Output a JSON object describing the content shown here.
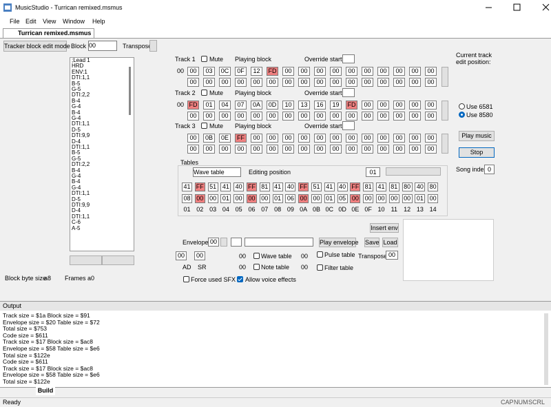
{
  "window_title": "MusicStudio - Turrican remixed.msmus",
  "menu": [
    "File",
    "Edit",
    "View",
    "Window",
    "Help"
  ],
  "tab": "Turrican remixed.msmus",
  "toolbar": {
    "mode_button": "Tracker block edit mode",
    "block_label": "Block",
    "block_value": "00",
    "transpose_label": "Transpose"
  },
  "block_list": [
    ";Lead 1",
    "HRD",
    "ENV:1",
    "DTI:1,1",
    "B-5",
    "G-5",
    "DTI:2,2",
    "B-4",
    "G-4",
    "B-4",
    "G-4",
    "DTI:1,1",
    "D-5",
    "DTI:9,9",
    "D-4",
    "DTI:1,1",
    "B-5",
    "G-5",
    "DTI:2,2",
    "B-4",
    "G-4",
    "B-4",
    "G-4",
    "DTI:1,1",
    "D-5",
    "DTI:9,9",
    "D-4",
    "DTI:1,1",
    "C-6",
    "A-5"
  ],
  "block_info": {
    "byte_size_label": "Block byte size",
    "byte_size": "a8",
    "frames_label": "Frames",
    "frames": "a0"
  },
  "tracks": [
    {
      "label": "Track 1",
      "mute": "Mute",
      "playing_block": "Playing block",
      "override_start": "Override start",
      "prefix": "00",
      "rows": [
        [
          "00",
          "03",
          "0C",
          "0F",
          "12",
          "FD",
          "00",
          "00",
          "00",
          "00",
          "00",
          "00",
          "00",
          "00",
          "00",
          "00"
        ],
        [
          "00",
          "00",
          "00",
          "00",
          "00",
          "00",
          "00",
          "00",
          "00",
          "00",
          "00",
          "00",
          "00",
          "00",
          "00",
          "00"
        ]
      ]
    },
    {
      "label": "Track 2",
      "mute": "Mute",
      "playing_block": "Playing block",
      "override_start": "Override start",
      "prefix": "00",
      "rows": [
        [
          "FD",
          "01",
          "04",
          "07",
          "0A",
          "0D",
          "10",
          "13",
          "16",
          "19",
          "FD",
          "00",
          "00",
          "00",
          "00",
          "00"
        ],
        [
          "00",
          "00",
          "00",
          "00",
          "00",
          "00",
          "00",
          "00",
          "00",
          "00",
          "00",
          "00",
          "00",
          "00",
          "00",
          "00"
        ]
      ]
    },
    {
      "label": "Track 3",
      "mute": "Mute",
      "playing_block": "Playing block",
      "override_start": "Override start",
      "rows": [
        [
          "00",
          "0B",
          "0E",
          "FF",
          "00",
          "00",
          "00",
          "00",
          "00",
          "00",
          "00",
          "00",
          "00",
          "00",
          "00",
          "00"
        ],
        [
          "00",
          "00",
          "00",
          "00",
          "00",
          "00",
          "00",
          "00",
          "00",
          "00",
          "00",
          "00",
          "00",
          "00",
          "00",
          "00"
        ]
      ]
    }
  ],
  "tables": {
    "title": "Tables",
    "selector": "Wave table",
    "editing_label": "Editing position",
    "editing_value": "01",
    "rows": [
      [
        "41",
        "FF",
        "51",
        "41",
        "40",
        "FF",
        "81",
        "41",
        "40",
        "FF",
        "51",
        "41",
        "40",
        "FF",
        "81",
        "41",
        "81",
        "80",
        "40",
        "80"
      ],
      [
        "08",
        "00",
        "00",
        "01",
        "00",
        "00",
        "00",
        "01",
        "06",
        "00",
        "00",
        "01",
        "05",
        "00",
        "00",
        "00",
        "00",
        "00",
        "01",
        "00"
      ]
    ],
    "indices": [
      "01",
      "02",
      "03",
      "04",
      "05",
      "06",
      "07",
      "08",
      "09",
      "0A",
      "0B",
      "0C",
      "0D",
      "0E",
      "0F",
      "10",
      "11",
      "12",
      "13",
      "14"
    ]
  },
  "right_panel": {
    "caption": "Current track edit position:",
    "sid_options": [
      "Use 6581",
      "Use 8580"
    ],
    "play": "Play music",
    "stop": "Stop",
    "song_index_label": "Song index",
    "song_index": "0"
  },
  "envelope": {
    "label": "Envelope",
    "value": "00",
    "play": "Play envelope",
    "save": "Save",
    "load": "Load",
    "insert": "Insert env",
    "ad": "00",
    "sr": "00",
    "ad_label": "AD",
    "sr_label": "SR",
    "wave_value": "00",
    "wave_table": "Wave table",
    "note_value": "00",
    "note_table": "Note table",
    "pulse_value": "00",
    "pulse_table": "Pulse table",
    "filter_value": "00",
    "filter_table": "Filter table",
    "transpose_label": "Transpose",
    "transpose_value": "00",
    "force_sfx": "Force used SFX",
    "allow_voice": "Allow voice effects"
  },
  "output": {
    "title": "Output",
    "lines": [
      "Track size = $1a  Block size = $91",
      "Envelope size = $20  Table size = $72",
      "Total size = $753",
      "Code size = $611",
      "Track size = $17  Block size = $ac8",
      "Envelope size = $58  Table size = $e6",
      "Total size = $122e",
      "Code size = $611",
      "Track size = $17  Block size = $ac8",
      "Envelope size = $58  Table size = $e6",
      "Total size = $122e"
    ],
    "tab": "Build"
  },
  "status": {
    "text": "Ready",
    "indicators": [
      "CAP",
      "NUM",
      "SCRL"
    ]
  }
}
